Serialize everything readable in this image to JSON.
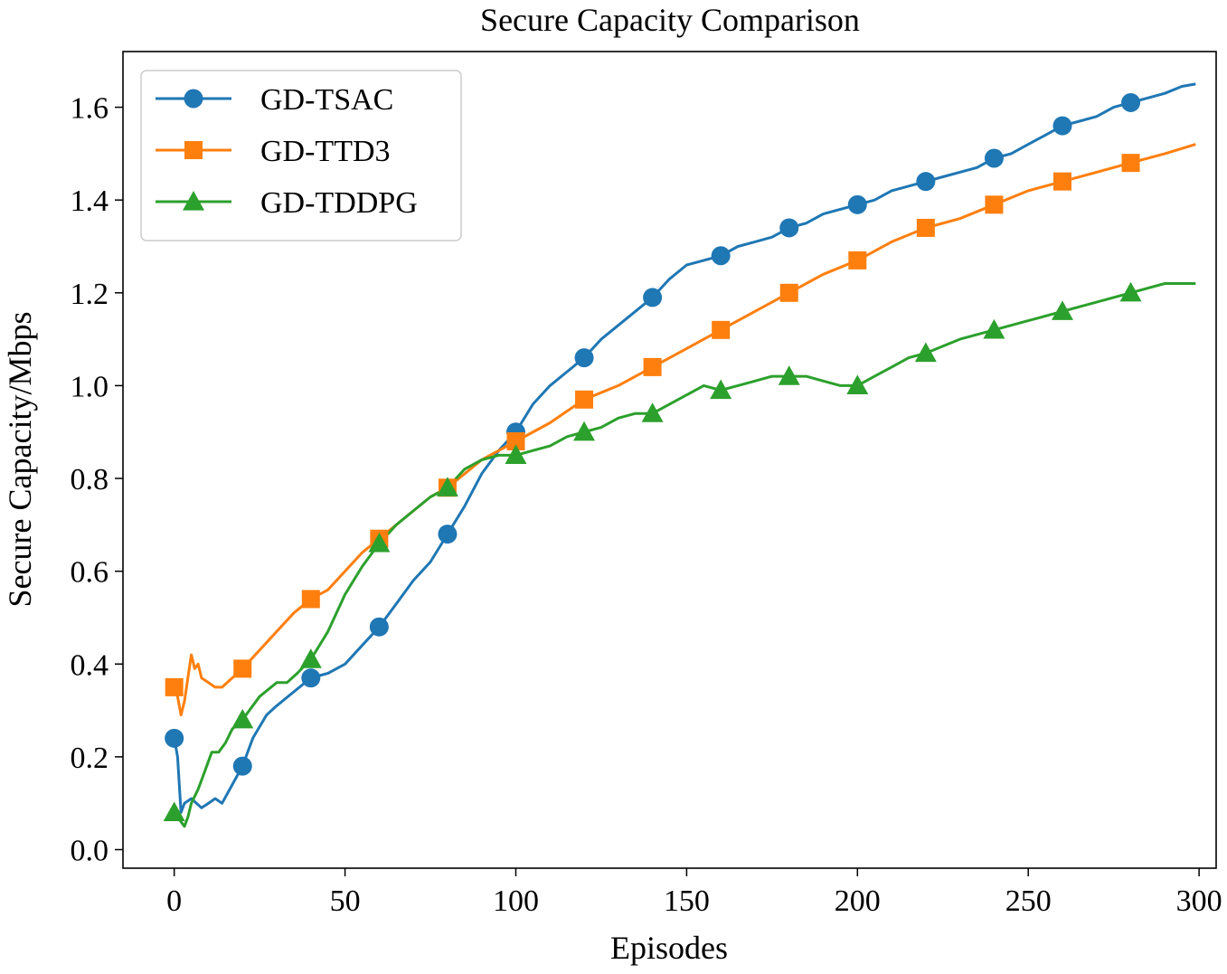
{
  "chart_data": {
    "type": "line",
    "title": "Secure Capacity Comparison",
    "xlabel": "Episodes",
    "ylabel": "Secure Capacity/Mbps",
    "xlim": [
      -15,
      305
    ],
    "ylim": [
      -0.04,
      1.72
    ],
    "xticks": [
      0,
      50,
      100,
      150,
      200,
      250,
      300
    ],
    "xtick_labels": [
      "0",
      "50",
      "100",
      "150",
      "200",
      "250",
      "300"
    ],
    "yticks": [
      0.0,
      0.2,
      0.4,
      0.6,
      0.8,
      1.0,
      1.2,
      1.4,
      1.6
    ],
    "ytick_labels": [
      "0.0",
      "0.2",
      "0.4",
      "0.6",
      "0.8",
      "1.0",
      "1.2",
      "1.4",
      "1.6"
    ],
    "legend_position": "top-left",
    "series": [
      {
        "name": "GD-TSAC",
        "color": "#1f77b4",
        "marker": "circle",
        "x": [
          0,
          1,
          2,
          3,
          5,
          8,
          10,
          12,
          14,
          17,
          20,
          23,
          27,
          30,
          35,
          40,
          45,
          50,
          55,
          60,
          65,
          70,
          75,
          80,
          85,
          90,
          95,
          100,
          105,
          110,
          115,
          120,
          125,
          130,
          135,
          140,
          145,
          150,
          155,
          160,
          165,
          170,
          175,
          180,
          185,
          190,
          195,
          200,
          205,
          210,
          215,
          220,
          225,
          230,
          235,
          240,
          245,
          250,
          255,
          260,
          265,
          270,
          275,
          280,
          285,
          290,
          295,
          299
        ],
        "y": [
          0.24,
          0.2,
          0.08,
          0.1,
          0.11,
          0.09,
          0.1,
          0.11,
          0.1,
          0.14,
          0.18,
          0.24,
          0.29,
          0.31,
          0.34,
          0.37,
          0.38,
          0.4,
          0.44,
          0.48,
          0.53,
          0.58,
          0.62,
          0.68,
          0.74,
          0.81,
          0.86,
          0.9,
          0.96,
          1.0,
          1.03,
          1.06,
          1.1,
          1.13,
          1.16,
          1.19,
          1.23,
          1.26,
          1.27,
          1.28,
          1.3,
          1.31,
          1.32,
          1.34,
          1.35,
          1.37,
          1.38,
          1.39,
          1.4,
          1.42,
          1.43,
          1.44,
          1.45,
          1.46,
          1.47,
          1.49,
          1.5,
          1.52,
          1.54,
          1.56,
          1.57,
          1.58,
          1.6,
          1.61,
          1.62,
          1.63,
          1.645,
          1.65
        ],
        "marker_every": 20
      },
      {
        "name": "GD-TTD3",
        "color": "#ff7f0e",
        "marker": "square",
        "x": [
          0,
          1,
          2,
          3,
          4,
          5,
          6,
          7,
          8,
          10,
          12,
          14,
          17,
          20,
          25,
          30,
          35,
          40,
          45,
          50,
          55,
          60,
          65,
          70,
          75,
          80,
          85,
          90,
          95,
          100,
          110,
          120,
          130,
          140,
          150,
          160,
          170,
          180,
          190,
          200,
          210,
          220,
          230,
          240,
          250,
          260,
          270,
          280,
          290,
          299
        ],
        "y": [
          0.35,
          0.33,
          0.29,
          0.32,
          0.37,
          0.42,
          0.39,
          0.4,
          0.37,
          0.36,
          0.35,
          0.35,
          0.37,
          0.39,
          0.43,
          0.47,
          0.51,
          0.54,
          0.56,
          0.6,
          0.64,
          0.67,
          0.7,
          0.73,
          0.76,
          0.78,
          0.81,
          0.84,
          0.86,
          0.88,
          0.92,
          0.97,
          1.0,
          1.04,
          1.08,
          1.12,
          1.16,
          1.2,
          1.24,
          1.27,
          1.31,
          1.34,
          1.36,
          1.39,
          1.42,
          1.44,
          1.46,
          1.48,
          1.5,
          1.52
        ],
        "marker_every": 20
      },
      {
        "name": "GD-TDDPG",
        "color": "#2ca02c",
        "marker": "triangle",
        "x": [
          0,
          1,
          2,
          3,
          4,
          5,
          7,
          9,
          11,
          13,
          15,
          17,
          20,
          25,
          30,
          33,
          36,
          40,
          45,
          50,
          55,
          60,
          65,
          70,
          75,
          80,
          85,
          90,
          95,
          100,
          105,
          110,
          115,
          120,
          125,
          130,
          135,
          140,
          145,
          150,
          155,
          160,
          165,
          170,
          175,
          180,
          185,
          190,
          195,
          200,
          205,
          210,
          215,
          220,
          230,
          240,
          250,
          260,
          270,
          280,
          290,
          299
        ],
        "y": [
          0.08,
          0.07,
          0.06,
          0.05,
          0.07,
          0.1,
          0.13,
          0.17,
          0.21,
          0.21,
          0.23,
          0.26,
          0.28,
          0.33,
          0.36,
          0.36,
          0.38,
          0.41,
          0.47,
          0.55,
          0.61,
          0.66,
          0.7,
          0.73,
          0.76,
          0.78,
          0.82,
          0.84,
          0.85,
          0.85,
          0.86,
          0.87,
          0.89,
          0.9,
          0.91,
          0.93,
          0.94,
          0.94,
          0.96,
          0.98,
          1.0,
          0.99,
          1.0,
          1.01,
          1.02,
          1.02,
          1.02,
          1.01,
          1.0,
          1.0,
          1.02,
          1.04,
          1.06,
          1.07,
          1.1,
          1.12,
          1.14,
          1.16,
          1.18,
          1.2,
          1.22,
          1.22
        ],
        "marker_every": 20
      }
    ]
  }
}
